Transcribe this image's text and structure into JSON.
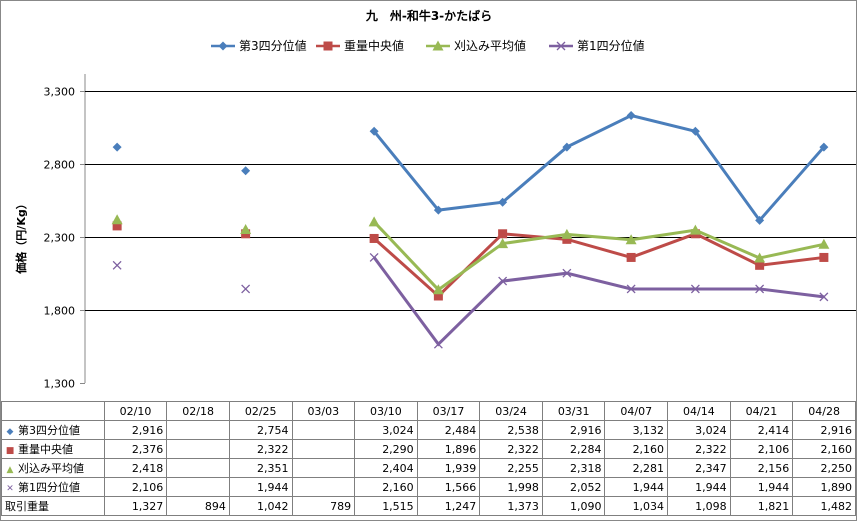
{
  "chart_data": {
    "type": "line",
    "title": "九　州-和牛3-かたばら",
    "ylabel": "価格（円/Kg）",
    "ylim": [
      1300,
      3300
    ],
    "yticks": [
      1300,
      1800,
      2300,
      2800,
      3300
    ],
    "ytick_labels": [
      "1,300",
      "1,800",
      "2,300",
      "2,800",
      "3,300"
    ],
    "grid": true,
    "legend_position": "top",
    "categories": [
      "02/10",
      "02/18",
      "02/25",
      "03/03",
      "03/10",
      "03/17",
      "03/24",
      "03/31",
      "04/07",
      "04/14",
      "04/21",
      "04/28"
    ],
    "series": [
      {
        "name": "第3四分位値",
        "color": "#4a7ebb",
        "marker": "diamond",
        "values": [
          2916,
          null,
          2754,
          null,
          3024,
          2484,
          2538,
          2916,
          3132,
          3024,
          2414,
          2916
        ],
        "labels": [
          "2,916",
          "",
          "2,754",
          "",
          "3,024",
          "2,484",
          "2,538",
          "2,916",
          "3,132",
          "3,024",
          "2,414",
          "2,916"
        ]
      },
      {
        "name": "重量中央値",
        "color": "#be4b48",
        "marker": "square",
        "values": [
          2376,
          null,
          2322,
          null,
          2290,
          1896,
          2322,
          2284,
          2160,
          2322,
          2106,
          2160
        ],
        "labels": [
          "2,376",
          "",
          "2,322",
          "",
          "2,290",
          "1,896",
          "2,322",
          "2,284",
          "2,160",
          "2,322",
          "2,106",
          "2,160"
        ]
      },
      {
        "name": "刈込み平均値",
        "color": "#98b954",
        "marker": "triangle",
        "values": [
          2418,
          null,
          2351,
          null,
          2404,
          1939,
          2255,
          2318,
          2281,
          2347,
          2156,
          2250
        ],
        "labels": [
          "2,418",
          "",
          "2,351",
          "",
          "2,404",
          "1,939",
          "2,255",
          "2,318",
          "2,281",
          "2,347",
          "2,156",
          "2,250"
        ]
      },
      {
        "name": "第1四分位値",
        "color": "#7d60a0",
        "marker": "x",
        "values": [
          2106,
          null,
          1944,
          null,
          2160,
          1566,
          1998,
          2052,
          1944,
          1944,
          1944,
          1890
        ],
        "labels": [
          "2,106",
          "",
          "1,944",
          "",
          "2,160",
          "1,566",
          "1,998",
          "2,052",
          "1,944",
          "1,944",
          "1,944",
          "1,890"
        ]
      }
    ],
    "extra_row": {
      "name": "取引重量",
      "labels": [
        "1,327",
        "894",
        "1,042",
        "789",
        "1,515",
        "1,247",
        "1,373",
        "1,090",
        "1,034",
        "1,098",
        "1,821",
        "1,482"
      ]
    }
  }
}
